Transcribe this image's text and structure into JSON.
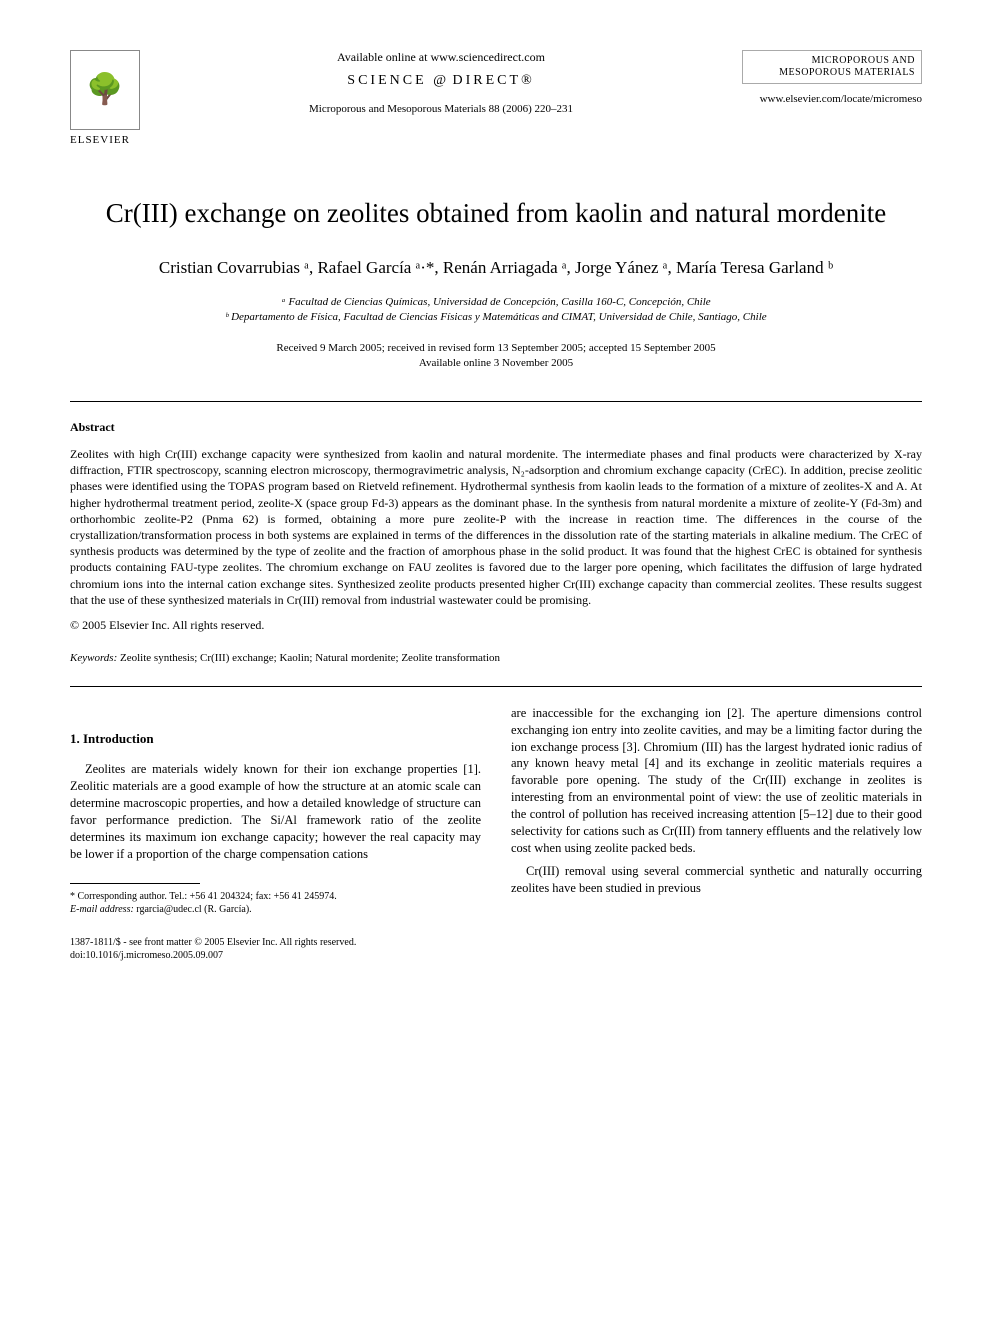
{
  "header": {
    "availableOnline": "Available online at www.sciencedirect.com",
    "scienceDirect": "SCIENCE",
    "scienceDirectAt": "d",
    "scienceDirectSuffix": "DIRECT®",
    "journalLine": "Microporous and Mesoporous Materials 88 (2006) 220–231",
    "elsevierText": "ELSEVIER",
    "journalLogoLine1": "MICROPOROUS AND",
    "journalLogoLine2": "MESOPOROUS MATERIALS",
    "journalUrl": "www.elsevier.com/locate/micromeso"
  },
  "title": "Cr(III) exchange on zeolites obtained from kaolin and natural mordenite",
  "authors": "Cristian Covarrubias ᵃ, Rafael García ᵃ·*, Renán Arriagada ᵃ, Jorge Yánez ᵃ, María Teresa Garland ᵇ",
  "affiliations": {
    "a": "ᵃ Facultad de Ciencias Químicas, Universidad de Concepción, Casilla 160-C, Concepción, Chile",
    "b": "ᵇ Departamento de Física, Facultad de Ciencias Físicas y Matemáticas and CIMAT, Universidad de Chile, Santiago, Chile"
  },
  "dates": {
    "line1": "Received 9 March 2005; received in revised form 13 September 2005; accepted 15 September 2005",
    "line2": "Available online 3 November 2005"
  },
  "abstract": {
    "heading": "Abstract",
    "body": "Zeolites with high Cr(III) exchange capacity were synthesized from kaolin and natural mordenite. The intermediate phases and final products were characterized by X-ray diffraction, FTIR spectroscopy, scanning electron microscopy, thermogravimetric analysis, N₂-adsorption and chromium exchange capacity (CrEC). In addition, precise zeolitic phases were identified using the TOPAS program based on Rietveld refinement. Hydrothermal synthesis from kaolin leads to the formation of a mixture of zeolites-X and A. At higher hydrothermal treatment period, zeolite-X (space group Fd-3) appears as the dominant phase. In the synthesis from natural mordenite a mixture of zeolite-Y (Fd-3m) and orthorhombic zeolite-P2 (Pnma 62) is formed, obtaining a more pure zeolite-P with the increase in reaction time. The differences in the course of the crystallization/transformation process in both systems are explained in terms of the differences in the dissolution rate of the starting materials in alkaline medium. The CrEC of synthesis products was determined by the type of zeolite and the fraction of amorphous phase in the solid product. It was found that the highest CrEC is obtained for synthesis products containing FAU-type zeolites. The chromium exchange on FAU zeolites is favored due to the larger pore opening, which facilitates the diffusion of large hydrated chromium ions into the internal cation exchange sites. Synthesized zeolite products presented higher Cr(III) exchange capacity than commercial zeolites. These results suggest that the use of these synthesized materials in Cr(III) removal from industrial wastewater could be promising.",
    "copyright": "© 2005 Elsevier Inc. All rights reserved."
  },
  "keywords": {
    "label": "Keywords:",
    "text": " Zeolite synthesis; Cr(III) exchange; Kaolin; Natural mordenite; Zeolite transformation"
  },
  "section1": {
    "heading": "1. Introduction",
    "colLeft": "Zeolites are materials widely known for their ion exchange properties [1]. Zeolitic materials are a good example of how the structure at an atomic scale can determine macroscopic properties, and how a detailed knowledge of structure can favor performance prediction. The Si/Al framework ratio of the zeolite determines its maximum ion exchange capacity; however the real capacity may be lower if a proportion of the charge compensation cations",
    "colRightP1": "are inaccessible for the exchanging ion [2]. The aperture dimensions control exchanging ion entry into zeolite cavities, and may be a limiting factor during the ion exchange process [3]. Chromium (III) has the largest hydrated ionic radius of any known heavy metal [4] and its exchange in zeolitic materials requires a favorable pore opening. The study of the Cr(III) exchange in zeolites is interesting from an environmental point of view: the use of zeolitic materials in the control of pollution has received increasing attention [5–12] due to their good selectivity for cations such as Cr(III) from tannery effluents and the relatively low cost when using zeolite packed beds.",
    "colRightP2": "Cr(III) removal using several commercial synthetic and naturally occurring zeolites have been studied in previous"
  },
  "footnote": {
    "corr": "* Corresponding author. Tel.: +56 41 204324; fax: +56 41 245974.",
    "emailLabel": "E-mail address:",
    "email": " rgarcia@udec.cl (R. García)."
  },
  "footer": {
    "line1": "1387-1811/$ - see front matter © 2005 Elsevier Inc. All rights reserved.",
    "line2": "doi:10.1016/j.micromeso.2005.09.007"
  },
  "colors": {
    "linkColor": "#0066cc",
    "textColor": "#000000",
    "bgColor": "#ffffff"
  }
}
